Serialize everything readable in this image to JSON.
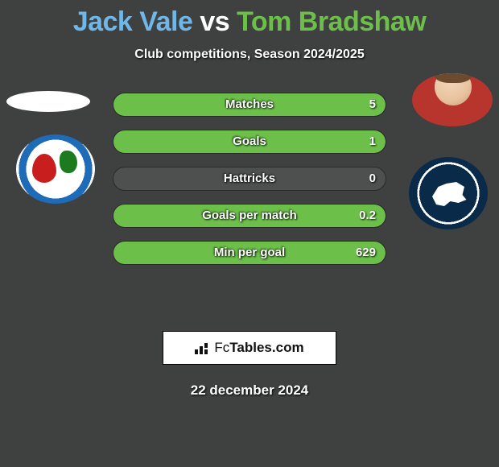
{
  "background_color": "#3f4040",
  "title": {
    "player1": "Jack Vale",
    "vs": "vs",
    "player2": "Tom Bradshaw",
    "fontsize": 34,
    "color_p1": "#6fb7e8",
    "color_vs": "#ffffff",
    "color_p2": "#6cc04a"
  },
  "subtitle": {
    "text": "Club competitions, Season 2024/2025",
    "fontsize": 16
  },
  "player1_avatar": {
    "shape": "ellipse",
    "bg": "#ffffff"
  },
  "player2_avatar": {
    "shape": "ellipse",
    "bg": "#b8352e"
  },
  "club_left": {
    "name": "Blackburn Rovers",
    "ring": "#1e6bb8"
  },
  "club_right": {
    "name": "Millwall",
    "ring": "#0a2a4a"
  },
  "bars": {
    "track_color": "#4e4f4f",
    "left_color": "#6fb7e8",
    "right_color": "#6cc04a",
    "label_fontsize": 15,
    "value_fontsize": 15,
    "height": 30,
    "gap": 16,
    "items": [
      {
        "label": "Matches",
        "left": "",
        "right": "5",
        "left_pct": 0,
        "right_pct": 100
      },
      {
        "label": "Goals",
        "left": "",
        "right": "1",
        "left_pct": 0,
        "right_pct": 100
      },
      {
        "label": "Hattricks",
        "left": "",
        "right": "0",
        "left_pct": 0,
        "right_pct": 0
      },
      {
        "label": "Goals per match",
        "left": "",
        "right": "0.2",
        "left_pct": 0,
        "right_pct": 100
      },
      {
        "label": "Min per goal",
        "left": "",
        "right": "629",
        "left_pct": 0,
        "right_pct": 100
      }
    ]
  },
  "logo": {
    "text_fc": "Fc",
    "text_rest": "Tables.com",
    "bg": "#ffffff",
    "border": "#000000"
  },
  "date": {
    "text": "22 december 2024",
    "fontsize": 17
  }
}
